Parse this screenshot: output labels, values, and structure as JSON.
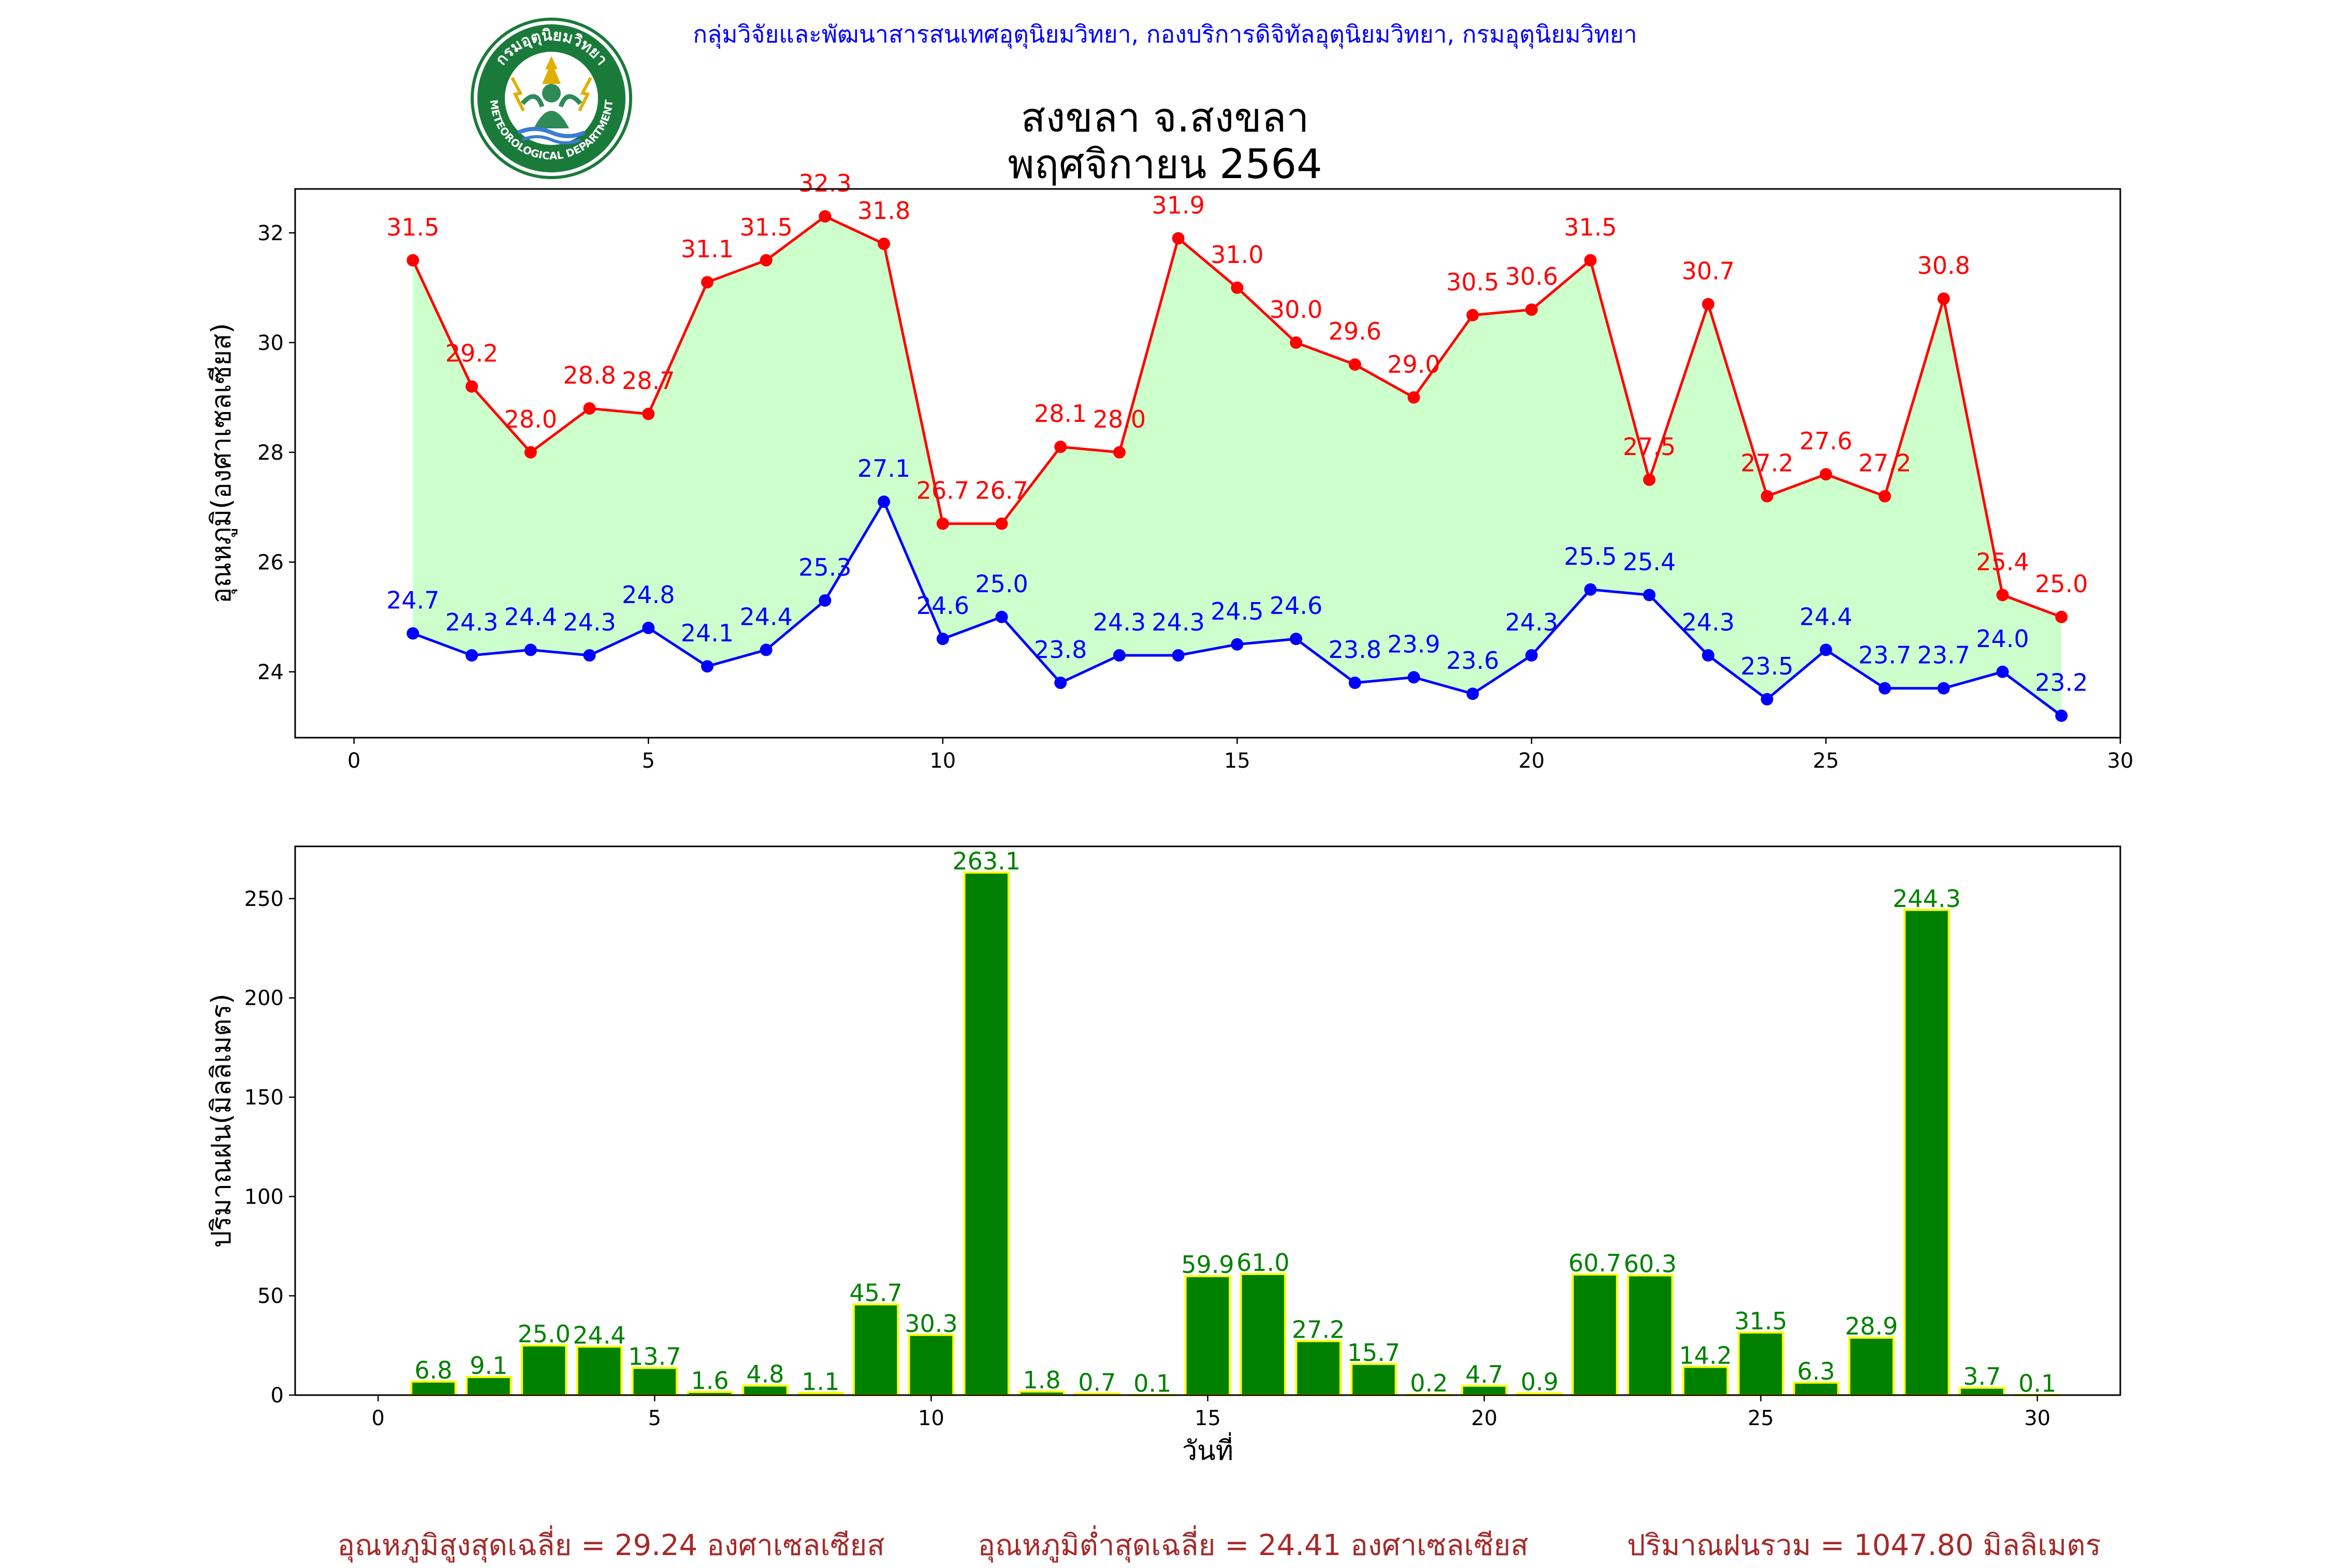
{
  "header": {
    "agency": "กลุ่มวิจัยและพัฒนาสารสนเทศอุตุนิยมวิทยา, กองบริการดิจิทัลอุตุนิยมวิทยา, กรมอุตุนิยมวิทยา",
    "station": "สงขลา จ.สงขลา",
    "period": "พฤศจิกายน 2564",
    "logo": {
      "top_text": "กรมอุตุนิยมวิทยา",
      "bottom_text": "METEOROLOGICAL DEPARTMENT",
      "colors": {
        "ring": "#1a7a3a",
        "inner": "#ffffff",
        "figure": "#2e8b57",
        "accent": "#e0b000"
      }
    }
  },
  "chart_data": [
    {
      "type": "line",
      "ylabel": "อุณหภูมิ(องศาเซลเซียส)",
      "xlim": [
        -1,
        30
      ],
      "ylim": [
        22.8,
        32.8
      ],
      "xticks": [
        0,
        5,
        10,
        15,
        20,
        25,
        30
      ],
      "yticks": [
        24,
        26,
        28,
        30,
        32
      ],
      "fill_between": {
        "color": "#ccffcc"
      },
      "x": [
        1,
        2,
        3,
        4,
        5,
        6,
        7,
        8,
        9,
        10,
        11,
        12,
        13,
        14,
        15,
        16,
        17,
        18,
        19,
        20,
        21,
        22,
        23,
        24,
        25,
        26,
        27,
        28,
        29
      ],
      "series": [
        {
          "color": "#ff0000",
          "values": [
            31.5,
            29.2,
            28.0,
            28.8,
            28.7,
            31.1,
            31.5,
            32.3,
            31.8,
            26.7,
            26.7,
            28.1,
            28.0,
            31.9,
            31.0,
            30.0,
            29.6,
            29.0,
            30.5,
            30.6,
            31.5,
            27.5,
            30.7,
            27.2,
            27.6,
            27.2,
            30.8,
            25.4,
            25.0
          ]
        },
        {
          "color": "#0000ff",
          "values": [
            24.7,
            24.3,
            24.4,
            24.3,
            24.8,
            24.1,
            24.4,
            25.3,
            27.1,
            24.6,
            25.0,
            23.8,
            24.3,
            24.3,
            24.5,
            24.6,
            23.8,
            23.9,
            23.6,
            24.3,
            25.5,
            25.4,
            24.3,
            23.5,
            24.4,
            23.7,
            23.7,
            24.0,
            23.2
          ]
        }
      ]
    },
    {
      "type": "bar",
      "ylabel": "ปริมาณฝน(มิลลิเมตร)",
      "xlabel": "วันที่",
      "xlim": [
        -1.5,
        31.5
      ],
      "ylim": [
        0,
        276.3
      ],
      "xticks": [
        0,
        5,
        10,
        15,
        20,
        25,
        30
      ],
      "yticks": [
        0,
        50,
        100,
        150,
        200,
        250
      ],
      "bar_color": "#008000",
      "edge_color": "#ffff00",
      "label_color": "#008000",
      "x": [
        1,
        2,
        3,
        4,
        5,
        6,
        7,
        8,
        9,
        10,
        11,
        12,
        13,
        14,
        15,
        16,
        17,
        18,
        19,
        20,
        21,
        22,
        23,
        24,
        25,
        26,
        27,
        28,
        29,
        30
      ],
      "values": [
        6.8,
        9.1,
        25.0,
        24.4,
        13.7,
        1.6,
        4.8,
        1.1,
        45.7,
        30.3,
        263.1,
        1.8,
        0.7,
        0.1,
        59.9,
        61.0,
        27.2,
        15.7,
        0.2,
        4.7,
        0.9,
        60.7,
        60.3,
        14.2,
        31.5,
        6.3,
        28.9,
        244.3,
        3.7,
        0.1
      ]
    }
  ],
  "footer": {
    "avg_max": "อุณหภูมิสูงสุดเฉลี่ย = 29.24 องศาเซลเซียส",
    "avg_min": "อุณหภูมิต่ำสุดเฉลี่ย = 24.41 องศาเซลเซียส",
    "total_rain": "ปริมาณฝนรวม = 1047.80 มิลลิเมตร"
  }
}
